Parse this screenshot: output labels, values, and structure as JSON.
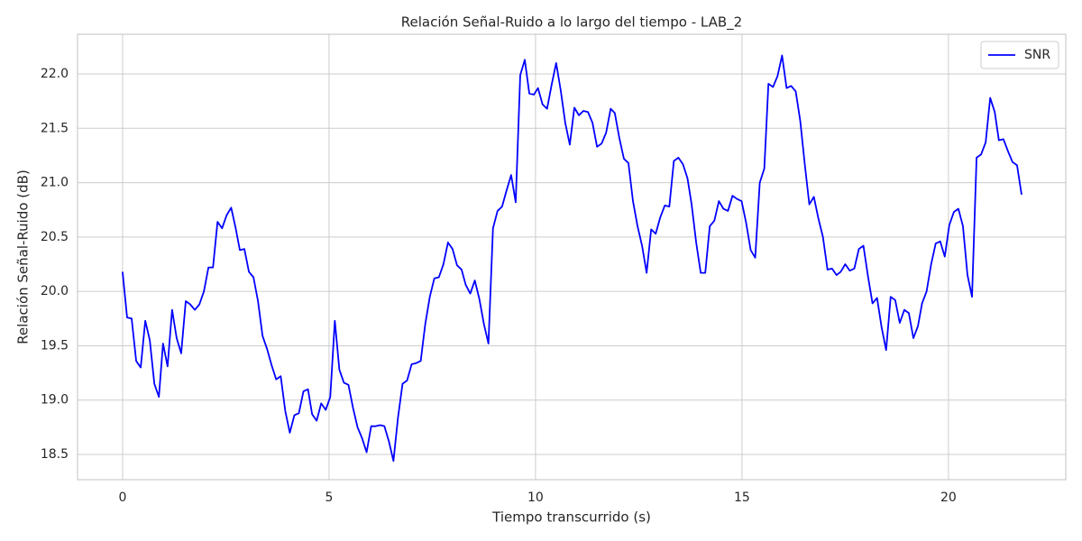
{
  "chart_data": {
    "type": "line",
    "title": "Relación Señal-Ruido a lo largo del tiempo - LAB_2",
    "xlabel": "Tiempo transcurrido (s)",
    "ylabel": "Relación Señal-Ruido (dB)",
    "x": [
      0,
      0.11,
      0.22,
      0.33,
      0.44,
      0.55,
      0.66,
      0.77,
      0.88,
      0.98,
      1.09,
      1.2,
      1.31,
      1.42,
      1.53,
      1.64,
      1.75,
      1.86,
      1.97,
      2.08,
      2.19,
      2.3,
      2.41,
      2.52,
      2.63,
      2.74,
      2.84,
      2.95,
      3.06,
      3.17,
      3.28,
      3.39,
      3.5,
      3.61,
      3.72,
      3.83,
      3.94,
      4.05,
      4.16,
      4.27,
      4.38,
      4.49,
      4.59,
      4.7,
      4.81,
      4.92,
      5.03,
      5.14,
      5.25,
      5.36,
      5.47,
      5.58,
      5.69,
      5.8,
      5.91,
      6.02,
      6.13,
      6.24,
      6.34,
      6.45,
      6.56,
      6.67,
      6.78,
      6.89,
      7,
      7.11,
      7.22,
      7.33,
      7.44,
      7.55,
      7.66,
      7.77,
      7.88,
      7.99,
      8.1,
      8.21,
      8.31,
      8.42,
      8.53,
      8.64,
      8.75,
      8.86,
      8.97,
      9.08,
      9.19,
      9.3,
      9.41,
      9.52,
      9.63,
      9.74,
      9.85,
      9.96,
      10.06,
      10.17,
      10.28,
      10.39,
      10.5,
      10.61,
      10.72,
      10.83,
      10.94,
      11.05,
      11.16,
      11.27,
      11.38,
      11.49,
      11.6,
      11.71,
      11.82,
      11.92,
      12.03,
      12.14,
      12.25,
      12.36,
      12.47,
      12.58,
      12.69,
      12.8,
      12.91,
      13.02,
      13.13,
      13.24,
      13.35,
      13.46,
      13.57,
      13.68,
      13.78,
      13.89,
      14,
      14.11,
      14.22,
      14.33,
      14.44,
      14.55,
      14.66,
      14.77,
      14.88,
      14.99,
      15.1,
      15.21,
      15.32,
      15.43,
      15.54,
      15.64,
      15.75,
      15.86,
      15.97,
      16.08,
      16.19,
      16.3,
      16.41,
      16.52,
      16.63,
      16.74,
      16.85,
      16.96,
      17.07,
      17.18,
      17.29,
      17.39,
      17.5,
      17.61,
      17.72,
      17.83,
      17.94,
      18.05,
      18.16,
      18.27,
      18.38,
      18.49,
      18.6,
      18.71,
      18.82,
      18.93,
      19.04,
      19.15,
      19.26,
      19.36,
      19.47,
      19.58,
      19.69,
      19.8,
      19.91,
      20.02,
      20.13,
      20.24,
      20.35,
      20.46,
      20.57,
      20.68,
      20.79,
      20.9,
      21.01,
      21.12,
      21.22,
      21.33,
      21.44,
      21.55,
      21.66,
      21.77
    ],
    "series": [
      {
        "name": "SNR",
        "color": "#0000ff",
        "values": [
          20.18,
          19.76,
          19.75,
          19.36,
          19.3,
          19.73,
          19.55,
          19.15,
          19.03,
          19.52,
          19.31,
          19.83,
          19.57,
          19.43,
          19.91,
          19.88,
          19.83,
          19.88,
          20,
          20.22,
          20.22,
          20.64,
          20.58,
          20.7,
          20.77,
          20.58,
          20.38,
          20.39,
          20.18,
          20.13,
          19.91,
          19.59,
          19.47,
          19.32,
          19.19,
          19.22,
          18.9,
          18.7,
          18.86,
          18.88,
          19.08,
          19.1,
          18.87,
          18.81,
          18.97,
          18.91,
          19.03,
          19.73,
          19.28,
          19.16,
          19.14,
          18.93,
          18.75,
          18.65,
          18.52,
          18.76,
          18.76,
          18.77,
          18.76,
          18.62,
          18.44,
          18.84,
          19.15,
          19.18,
          19.33,
          19.34,
          19.36,
          19.7,
          19.95,
          20.12,
          20.13,
          20.25,
          20.45,
          20.39,
          20.24,
          20.2,
          20.06,
          19.98,
          20.1,
          19.93,
          19.7,
          19.52,
          20.58,
          20.74,
          20.78,
          20.93,
          21.07,
          20.82,
          21.99,
          22.13,
          21.82,
          21.81,
          21.87,
          21.72,
          21.68,
          21.9,
          22.1,
          21.85,
          21.55,
          21.35,
          21.69,
          21.62,
          21.66,
          21.65,
          21.55,
          21.33,
          21.36,
          21.46,
          21.68,
          21.64,
          21.41,
          21.22,
          21.18,
          20.83,
          20.6,
          20.42,
          20.17,
          20.57,
          20.53,
          20.68,
          20.79,
          20.78,
          21.2,
          21.23,
          21.17,
          21.04,
          20.8,
          20.45,
          20.17,
          20.17,
          20.6,
          20.65,
          20.83,
          20.76,
          20.74,
          20.88,
          20.85,
          20.83,
          20.63,
          20.38,
          20.31,
          21,
          21.13,
          21.91,
          21.88,
          21.98,
          22.17,
          21.87,
          21.89,
          21.84,
          21.57,
          21.17,
          20.8,
          20.87,
          20.67,
          20.5,
          20.2,
          20.21,
          20.15,
          20.18,
          20.25,
          20.19,
          20.21,
          20.39,
          20.42,
          20.14,
          19.89,
          19.94,
          19.67,
          19.46,
          19.95,
          19.92,
          19.71,
          19.83,
          19.8,
          19.57,
          19.68,
          19.89,
          20,
          20.25,
          20.44,
          20.46,
          20.32,
          20.61,
          20.73,
          20.76,
          20.6,
          20.15,
          19.95,
          21.23,
          21.26,
          21.37,
          21.78,
          21.65,
          21.39,
          21.4,
          21.29,
          21.19,
          21.16,
          20.89
        ]
      }
    ],
    "xlim": [
      -1.09,
      22.84
    ],
    "ylim": [
      18.268,
      22.365
    ],
    "xticks": [
      0,
      5,
      10,
      15,
      20
    ],
    "yticks": [
      18.5,
      {
        "value": 19,
        "label": "19.0"
      },
      19.5,
      {
        "value": 20,
        "label": "20.0"
      },
      20.5,
      {
        "value": 21,
        "label": "21.0"
      },
      21.5,
      {
        "value": 22,
        "label": "22.0"
      }
    ],
    "grid": true,
    "legend": "upper right"
  }
}
